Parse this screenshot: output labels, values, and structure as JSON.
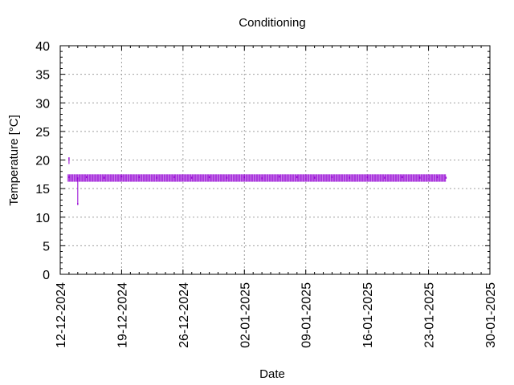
{
  "chart_data": {
    "type": "scatter",
    "title": "Conditioning",
    "xlabel": "Date",
    "ylabel": "Temperature [°C]",
    "xlim": [
      "2024-12-12",
      "2025-01-30"
    ],
    "ylim": [
      0,
      40
    ],
    "xticks": [
      "12-12-2024",
      "19-12-2024",
      "26-12-2024",
      "02-01-2025",
      "09-01-2025",
      "16-01-2025",
      "23-01-2025",
      "30-01-2025"
    ],
    "yticks": [
      0,
      5,
      10,
      15,
      20,
      25,
      30,
      35,
      40
    ],
    "grid": true,
    "series": [
      {
        "color": "#9400d3",
        "x": [
          "2024-12-13",
          "2024-12-13",
          "2024-12-14",
          "2024-12-14",
          "2024-12-15",
          "2024-12-17",
          "2024-12-19",
          "2024-12-21",
          "2024-12-23",
          "2024-12-25",
          "2024-12-27",
          "2024-12-29",
          "2024-12-31",
          "2025-01-02",
          "2025-01-04",
          "2025-01-06",
          "2025-01-08",
          "2025-01-10",
          "2025-01-12",
          "2025-01-14",
          "2025-01-16",
          "2025-01-18",
          "2025-01-20",
          "2025-01-22",
          "2025-01-24",
          "2025-01-25"
        ],
        "y": [
          20.3,
          17.0,
          16.8,
          12.3,
          17.0,
          16.9,
          17.1,
          17.0,
          16.9,
          17.0,
          16.9,
          17.0,
          16.9,
          17.0,
          16.8,
          17.1,
          17.0,
          16.9,
          17.0,
          16.9,
          17.0,
          16.9,
          17.0,
          16.9,
          17.0,
          16.9
        ]
      }
    ]
  }
}
